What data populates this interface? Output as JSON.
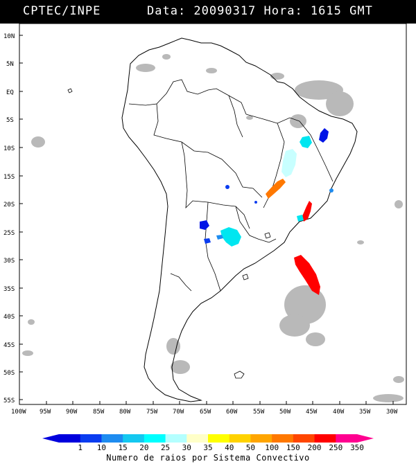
{
  "header": {
    "organization": "CPTEC/INPE",
    "datetime": "Data: 20090317 Hora: 1615 GMT"
  },
  "map": {
    "lat_labels": [
      "10N",
      "5N",
      "EQ",
      "5S",
      "10S",
      "15S",
      "20S",
      "25S",
      "30S",
      "35S",
      "40S",
      "45S",
      "50S",
      "55S"
    ],
    "lon_labels": [
      "100W",
      "95W",
      "90W",
      "85W",
      "80W",
      "75W",
      "70W",
      "65W",
      "60W",
      "55W",
      "50W",
      "45W",
      "40W",
      "35W",
      "30W"
    ]
  },
  "colorbar": {
    "ticks": [
      "1",
      "10",
      "15",
      "20",
      "25",
      "30",
      "35",
      "40",
      "50",
      "100",
      "150",
      "200",
      "250",
      "350"
    ],
    "colors": [
      "#0000dd",
      "#0a3cf0",
      "#1e8cf0",
      "#14c8f0",
      "#00ffff",
      "#b4ffff",
      "#ffffc8",
      "#ffff00",
      "#ffd200",
      "#ffa500",
      "#ff7800",
      "#ff4600",
      "#ff0000",
      "#ff0090"
    ],
    "label": "Numero de raios por Sistema Convectivo"
  },
  "palette": {
    "coast": "#000000",
    "cloud": "#b4b4b4",
    "storm_cyan": "#00e6f0",
    "storm_lightcyan": "#c8ffff",
    "storm_orange": "#ff7800",
    "storm_red": "#ff0000",
    "storm_blue": "#0014e6"
  }
}
